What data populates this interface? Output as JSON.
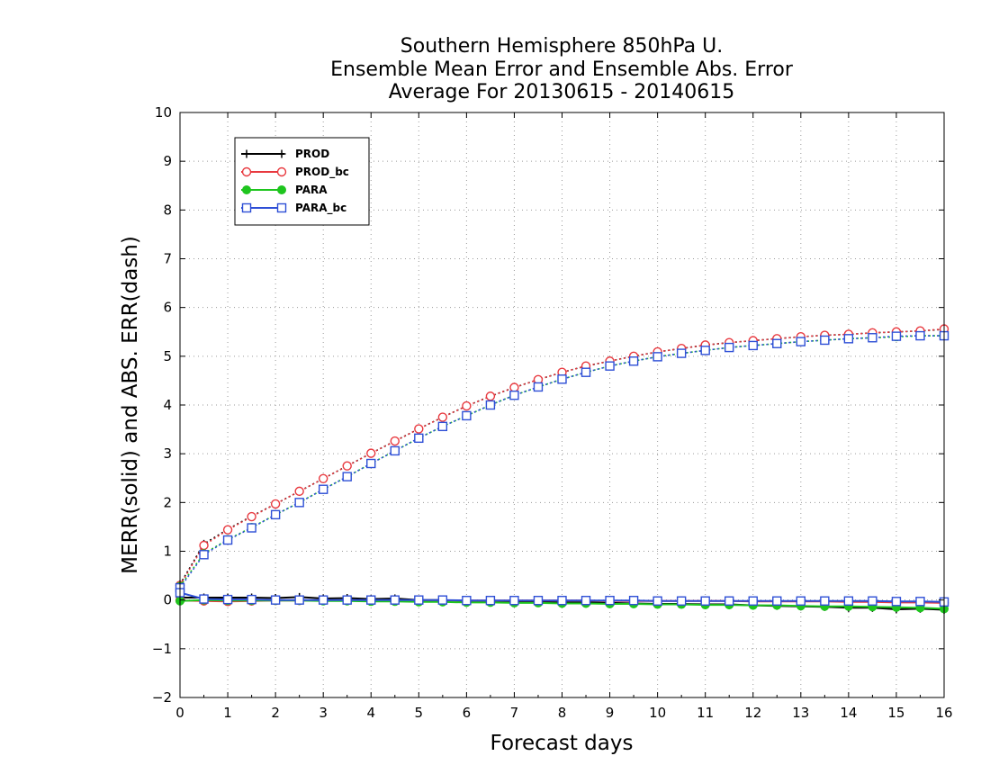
{
  "chart_data": {
    "type": "line",
    "title_lines": [
      "Southern Hemisphere 850hPa U.",
      "Ensemble Mean Error and Ensemble Abs. Error",
      "Average For 20130615 - 20140615"
    ],
    "xlabel": "Forecast days",
    "ylabel": "MERR(solid) and ABS. ERR(dash)",
    "xlim": [
      0,
      16
    ],
    "ylim": [
      -2,
      10
    ],
    "xticks": [
      0,
      1,
      2,
      3,
      4,
      5,
      6,
      7,
      8,
      9,
      10,
      11,
      12,
      13,
      14,
      15,
      16
    ],
    "yticks": [
      -2,
      -1,
      0,
      1,
      2,
      3,
      4,
      5,
      6,
      7,
      8,
      9,
      10
    ],
    "grid": true,
    "legend_position": "top-left",
    "x": [
      0,
      0.5,
      1,
      1.5,
      2,
      2.5,
      3,
      3.5,
      4,
      4.5,
      5,
      5.5,
      6,
      6.5,
      7,
      7.5,
      8,
      8.5,
      9,
      9.5,
      10,
      10.5,
      11,
      11.5,
      12,
      12.5,
      13,
      13.5,
      14,
      14.5,
      15,
      15.5,
      16
    ],
    "series": [
      {
        "name": "PROD",
        "color": "#000000",
        "marker": "plus",
        "merr": [
          0.05,
          0.05,
          0.05,
          0.05,
          0.04,
          0.06,
          0.03,
          0.04,
          0.02,
          0.03,
          0.0,
          0.0,
          -0.02,
          -0.03,
          -0.04,
          -0.04,
          -0.05,
          -0.05,
          -0.06,
          -0.07,
          -0.08,
          -0.08,
          -0.09,
          -0.09,
          -0.11,
          -0.12,
          -0.13,
          -0.14,
          -0.16,
          -0.16,
          -0.19,
          -0.18,
          -0.2
        ],
        "abs": [
          0.32,
          1.15,
          1.45,
          1.72,
          1.97,
          2.23,
          2.49,
          2.75,
          3.01,
          3.26,
          3.51,
          3.75,
          3.98,
          4.18,
          4.36,
          4.52,
          4.67,
          4.8,
          4.9,
          5.0,
          5.09,
          5.16,
          5.23,
          5.28,
          5.32,
          5.36,
          5.4,
          5.43,
          5.45,
          5.48,
          5.5,
          5.52,
          5.55
        ]
      },
      {
        "name": "PROD_bc",
        "color": "#e8393f",
        "marker": "circle-open",
        "merr": [
          -0.01,
          -0.02,
          -0.03,
          -0.02,
          -0.01,
          -0.01,
          -0.01,
          -0.01,
          -0.01,
          -0.01,
          -0.01,
          -0.01,
          -0.01,
          -0.01,
          -0.01,
          -0.01,
          -0.01,
          -0.01,
          -0.02,
          -0.02,
          -0.02,
          -0.02,
          -0.02,
          -0.02,
          -0.03,
          -0.03,
          -0.03,
          -0.03,
          -0.04,
          -0.04,
          -0.05,
          -0.05,
          -0.06
        ],
        "abs": [
          0.3,
          1.12,
          1.44,
          1.71,
          1.97,
          2.23,
          2.49,
          2.75,
          3.01,
          3.26,
          3.51,
          3.75,
          3.98,
          4.18,
          4.36,
          4.52,
          4.67,
          4.8,
          4.9,
          5.0,
          5.09,
          5.16,
          5.23,
          5.28,
          5.32,
          5.36,
          5.4,
          5.43,
          5.45,
          5.48,
          5.5,
          5.52,
          5.56
        ]
      },
      {
        "name": "PARA",
        "color": "#1ec51e",
        "marker": "circle-filled",
        "merr": [
          -0.02,
          0.0,
          -0.01,
          -0.01,
          -0.01,
          -0.01,
          -0.02,
          -0.02,
          -0.03,
          -0.03,
          -0.04,
          -0.04,
          -0.05,
          -0.05,
          -0.06,
          -0.06,
          -0.07,
          -0.07,
          -0.08,
          -0.08,
          -0.09,
          -0.09,
          -0.1,
          -0.1,
          -0.11,
          -0.11,
          -0.12,
          -0.13,
          -0.13,
          -0.14,
          -0.15,
          -0.16,
          -0.18
        ],
        "abs": [
          0.28,
          0.95,
          1.24,
          1.49,
          1.75,
          2.0,
          2.27,
          2.53,
          2.8,
          3.06,
          3.32,
          3.56,
          3.78,
          4.0,
          4.2,
          4.37,
          4.53,
          4.67,
          4.8,
          4.9,
          4.99,
          5.06,
          5.12,
          5.18,
          5.22,
          5.26,
          5.3,
          5.33,
          5.36,
          5.38,
          5.4,
          5.42,
          5.42
        ]
      },
      {
        "name": "PARA_bc",
        "color": "#2e4fd6",
        "marker": "square-open",
        "merr": [
          0.15,
          0.02,
          0.01,
          0.01,
          0.0,
          0.0,
          0.0,
          0.0,
          0.0,
          0.0,
          0.0,
          0.0,
          -0.01,
          -0.01,
          -0.01,
          -0.01,
          -0.01,
          -0.01,
          -0.01,
          -0.01,
          -0.02,
          -0.02,
          -0.02,
          -0.02,
          -0.02,
          -0.02,
          -0.02,
          -0.02,
          -0.02,
          -0.02,
          -0.03,
          -0.03,
          -0.04
        ],
        "abs": [
          0.25,
          0.93,
          1.23,
          1.48,
          1.75,
          2.0,
          2.27,
          2.53,
          2.8,
          3.06,
          3.32,
          3.56,
          3.78,
          4.0,
          4.2,
          4.37,
          4.53,
          4.67,
          4.8,
          4.9,
          4.99,
          5.06,
          5.12,
          5.18,
          5.22,
          5.26,
          5.3,
          5.33,
          5.36,
          5.38,
          5.41,
          5.42,
          5.42
        ]
      }
    ]
  }
}
